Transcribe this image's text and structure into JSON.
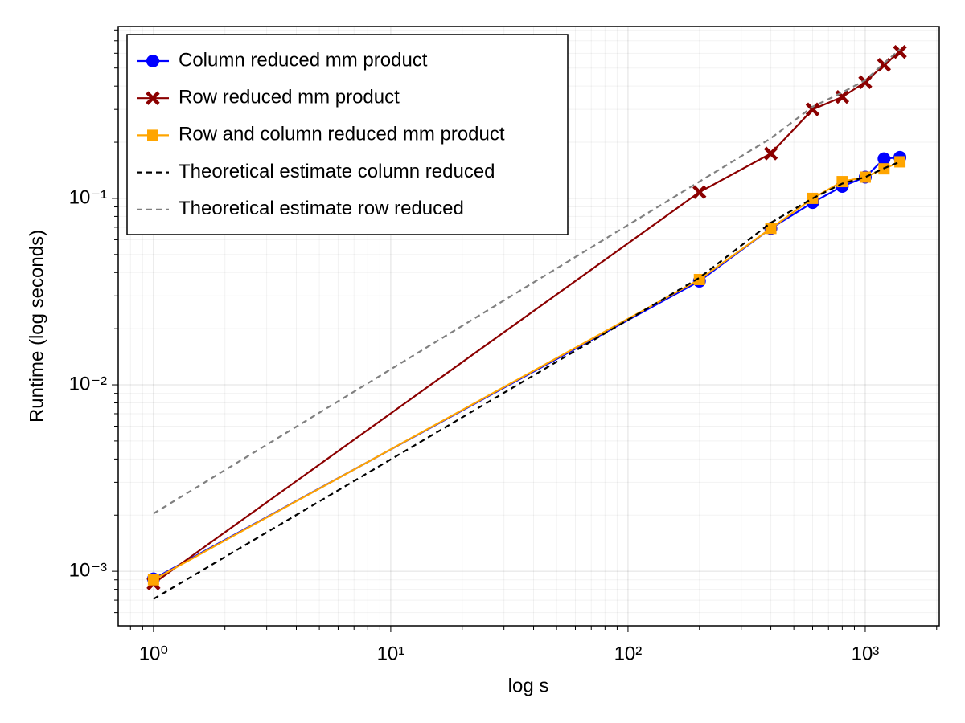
{
  "chart_data": {
    "type": "line",
    "xlabel": "log s",
    "ylabel": "Runtime (log seconds)",
    "x": [
      1,
      200,
      400,
      600,
      800,
      1000,
      1200,
      1400
    ],
    "series": [
      {
        "name": "Column reduced mm product",
        "color": "#0000ff",
        "marker": "circle",
        "dash": "solid",
        "values": [
          0.00091,
          0.036,
          0.069,
          0.095,
          0.116,
          0.13,
          0.163,
          0.166
        ]
      },
      {
        "name": "Row reduced mm product",
        "color": "#8b0000",
        "marker": "cross",
        "dash": "solid",
        "values": [
          0.00086,
          0.108,
          0.174,
          0.3,
          0.35,
          0.42,
          0.52,
          0.61
        ]
      },
      {
        "name": "Row and column reduced mm product",
        "color": "#ffa500",
        "marker": "square",
        "dash": "solid",
        "values": [
          0.0009,
          0.0367,
          0.069,
          0.1,
          0.123,
          0.13,
          0.144,
          0.157
        ]
      },
      {
        "name": "Theoretical estimate column reduced",
        "color": "#000000",
        "marker": "none",
        "dash": "dashed",
        "values": [
          0.00071,
          0.0375,
          0.074,
          0.1,
          0.12,
          0.13,
          0.145,
          0.157
        ]
      },
      {
        "name": "Theoretical estimate row reduced",
        "color": "#808080",
        "marker": "none",
        "dash": "dashed",
        "values": [
          0.00204,
          0.123,
          0.21,
          0.31,
          0.37,
          0.43,
          0.53,
          0.63
        ]
      }
    ],
    "xscale": "log",
    "yscale": "log",
    "xlim": [
      0.71,
      2051
    ],
    "ylim": [
      0.00051,
      0.835
    ],
    "xticks": [
      {
        "value": 1,
        "label": "10⁰"
      },
      {
        "value": 10,
        "label": "10¹"
      },
      {
        "value": 100,
        "label": "10²"
      },
      {
        "value": 1000,
        "label": "10³"
      }
    ],
    "yticks": [
      {
        "value": 0.001,
        "label": "10⁻³"
      },
      {
        "value": 0.01,
        "label": "10⁻²"
      },
      {
        "value": 0.1,
        "label": "10⁻¹"
      }
    ],
    "grid": true,
    "legend": "top-left"
  }
}
